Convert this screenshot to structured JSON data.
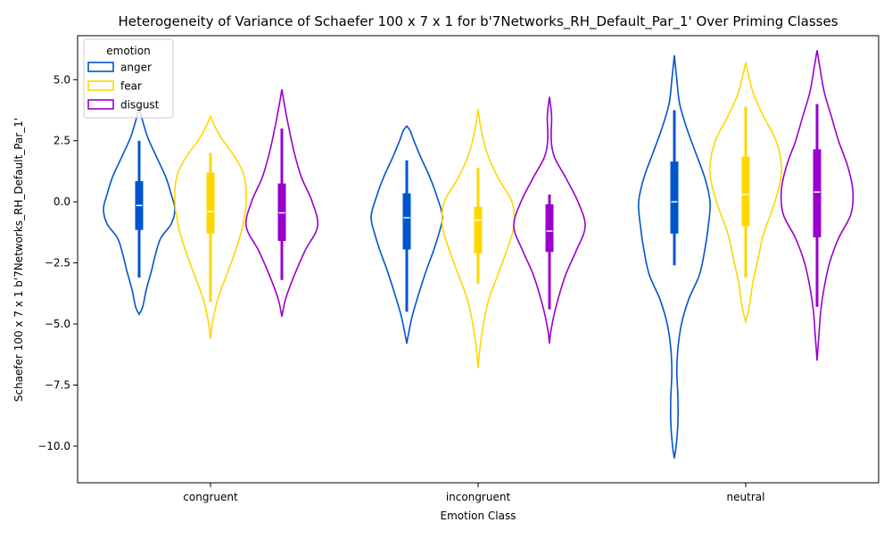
{
  "chart_data": {
    "type": "violin",
    "title": "Heterogeneity of Variance of Schaefer 100 x 7 x 1 for b'7Networks_RH_Default_Par_1' Over Priming Classes",
    "xlabel": "Emotion Class",
    "ylabel": "Schaefer 100 x 7 x 1 b'7Networks_RH_Default_Par_1'",
    "categories": [
      "congruent",
      "incongruent",
      "neutral"
    ],
    "ylim": [
      -11.5,
      6.8
    ],
    "yticks": [
      5.0,
      2.5,
      0.0,
      -2.5,
      -5.0,
      -7.5,
      -10.0
    ],
    "ytick_labels": [
      "5.0",
      "2.5",
      "0.0",
      "−2.5",
      "−5.0",
      "−7.5",
      "−10.0"
    ],
    "grid": false,
    "legend": {
      "title": "emotion",
      "location": "upper-left",
      "entries": [
        "anger",
        "fear",
        "disgust"
      ]
    },
    "series": [
      {
        "name": "anger",
        "color": "#0055cc",
        "groups": [
          {
            "category": "congruent",
            "profile": [
              [
                -4.6,
                0.0
              ],
              [
                -4.3,
                0.1
              ],
              [
                -3.6,
                0.2
              ],
              [
                -2.8,
                0.35
              ],
              [
                -2.2,
                0.45
              ],
              [
                -1.5,
                0.6
              ],
              [
                -0.9,
                0.9
              ],
              [
                -0.3,
                1.0
              ],
              [
                0.3,
                0.9
              ],
              [
                1.0,
                0.75
              ],
              [
                1.8,
                0.5
              ],
              [
                2.6,
                0.25
              ],
              [
                3.3,
                0.1
              ],
              [
                3.9,
                0.0
              ]
            ],
            "box": {
              "q1": -1.15,
              "median": -0.15,
              "q3": 0.85,
              "whisker_low": -3.1,
              "whisker_high": 2.5
            }
          },
          {
            "category": "incongruent",
            "profile": [
              [
                -5.8,
                0.0
              ],
              [
                -5.4,
                0.05
              ],
              [
                -4.7,
                0.15
              ],
              [
                -3.7,
                0.35
              ],
              [
                -2.8,
                0.55
              ],
              [
                -2.0,
                0.75
              ],
              [
                -1.3,
                0.9
              ],
              [
                -0.6,
                1.0
              ],
              [
                0.2,
                0.85
              ],
              [
                1.0,
                0.65
              ],
              [
                1.8,
                0.4
              ],
              [
                2.5,
                0.2
              ],
              [
                2.9,
                0.1
              ],
              [
                3.1,
                0.0
              ]
            ],
            "box": {
              "q1": -1.95,
              "median": -0.65,
              "q3": 0.35,
              "whisker_low": -4.5,
              "whisker_high": 1.7
            }
          },
          {
            "category": "neutral",
            "profile": [
              [
                -10.5,
                0.0
              ],
              [
                -10.0,
                0.05
              ],
              [
                -9.0,
                0.1
              ],
              [
                -8.0,
                0.1
              ],
              [
                -7.0,
                0.07
              ],
              [
                -6.0,
                0.1
              ],
              [
                -5.0,
                0.2
              ],
              [
                -4.0,
                0.4
              ],
              [
                -3.0,
                0.7
              ],
              [
                -2.0,
                0.85
              ],
              [
                -1.0,
                0.95
              ],
              [
                0.0,
                1.0
              ],
              [
                1.0,
                0.85
              ],
              [
                2.0,
                0.6
              ],
              [
                3.0,
                0.35
              ],
              [
                4.0,
                0.15
              ],
              [
                5.0,
                0.07
              ],
              [
                6.0,
                0.0
              ]
            ],
            "box": {
              "q1": -1.3,
              "median": 0.0,
              "q3": 1.65,
              "whisker_low": -2.6,
              "whisker_high": 3.75
            }
          }
        ]
      },
      {
        "name": "fear",
        "color": "#ffd700",
        "groups": [
          {
            "category": "congruent",
            "profile": [
              [
                -5.6,
                0.0
              ],
              [
                -5.0,
                0.05
              ],
              [
                -4.0,
                0.2
              ],
              [
                -3.0,
                0.45
              ],
              [
                -2.0,
                0.7
              ],
              [
                -1.0,
                0.9
              ],
              [
                0.0,
                1.0
              ],
              [
                1.0,
                0.95
              ],
              [
                1.8,
                0.7
              ],
              [
                2.5,
                0.35
              ],
              [
                3.0,
                0.15
              ],
              [
                3.5,
                0.0
              ]
            ],
            "box": {
              "q1": -1.3,
              "median": -0.4,
              "q3": 1.2,
              "whisker_low": -4.1,
              "whisker_high": 2.0
            }
          },
          {
            "category": "incongruent",
            "profile": [
              [
                -6.8,
                0.0
              ],
              [
                -6.0,
                0.05
              ],
              [
                -5.0,
                0.15
              ],
              [
                -4.0,
                0.3
              ],
              [
                -3.0,
                0.55
              ],
              [
                -2.0,
                0.8
              ],
              [
                -1.0,
                1.0
              ],
              [
                0.0,
                0.95
              ],
              [
                1.0,
                0.55
              ],
              [
                2.0,
                0.25
              ],
              [
                3.0,
                0.08
              ],
              [
                3.8,
                0.0
              ]
            ],
            "box": {
              "q1": -2.1,
              "median": -0.75,
              "q3": -0.2,
              "whisker_low": -3.35,
              "whisker_high": 1.4
            }
          },
          {
            "category": "neutral",
            "profile": [
              [
                -4.9,
                0.0
              ],
              [
                -4.3,
                0.1
              ],
              [
                -3.3,
                0.2
              ],
              [
                -2.3,
                0.35
              ],
              [
                -1.3,
                0.5
              ],
              [
                -0.3,
                0.75
              ],
              [
                0.7,
                0.95
              ],
              [
                1.5,
                1.0
              ],
              [
                2.5,
                0.85
              ],
              [
                3.5,
                0.5
              ],
              [
                4.5,
                0.2
              ],
              [
                5.7,
                0.0
              ]
            ],
            "box": {
              "q1": -1.0,
              "median": 0.3,
              "q3": 1.85,
              "whisker_low": -3.1,
              "whisker_high": 3.9
            }
          }
        ]
      },
      {
        "name": "disgust",
        "color": "#9900cc",
        "groups": [
          {
            "category": "congruent",
            "profile": [
              [
                -4.7,
                0.0
              ],
              [
                -4.0,
                0.1
              ],
              [
                -3.0,
                0.35
              ],
              [
                -2.0,
                0.65
              ],
              [
                -1.0,
                1.0
              ],
              [
                0.0,
                0.85
              ],
              [
                1.0,
                0.55
              ],
              [
                2.0,
                0.35
              ],
              [
                3.0,
                0.2
              ],
              [
                4.0,
                0.07
              ],
              [
                4.6,
                0.0
              ]
            ],
            "box": {
              "q1": -1.6,
              "median": -0.45,
              "q3": 0.75,
              "whisker_low": -3.2,
              "whisker_high": 3.0
            }
          },
          {
            "category": "incongruent",
            "profile": [
              [
                -5.8,
                0.0
              ],
              [
                -5.2,
                0.05
              ],
              [
                -4.2,
                0.2
              ],
              [
                -3.0,
                0.45
              ],
              [
                -2.0,
                0.75
              ],
              [
                -1.0,
                1.0
              ],
              [
                0.0,
                0.8
              ],
              [
                1.0,
                0.45
              ],
              [
                1.8,
                0.15
              ],
              [
                2.5,
                0.05
              ],
              [
                3.5,
                0.06
              ],
              [
                4.3,
                0.0
              ]
            ],
            "box": {
              "q1": -2.05,
              "median": -1.2,
              "q3": -0.1,
              "whisker_low": -4.4,
              "whisker_high": 0.3
            }
          },
          {
            "category": "neutral",
            "profile": [
              [
                -6.5,
                0.0
              ],
              [
                -5.5,
                0.05
              ],
              [
                -4.5,
                0.1
              ],
              [
                -3.5,
                0.2
              ],
              [
                -2.5,
                0.35
              ],
              [
                -1.5,
                0.6
              ],
              [
                -0.5,
                0.95
              ],
              [
                0.5,
                1.0
              ],
              [
                1.5,
                0.85
              ],
              [
                2.5,
                0.6
              ],
              [
                3.5,
                0.4
              ],
              [
                4.5,
                0.2
              ],
              [
                5.5,
                0.08
              ],
              [
                6.2,
                0.0
              ]
            ],
            "box": {
              "q1": -1.45,
              "median": 0.4,
              "q3": 2.15,
              "whisker_low": -4.3,
              "whisker_high": 4.0
            }
          }
        ]
      }
    ]
  }
}
